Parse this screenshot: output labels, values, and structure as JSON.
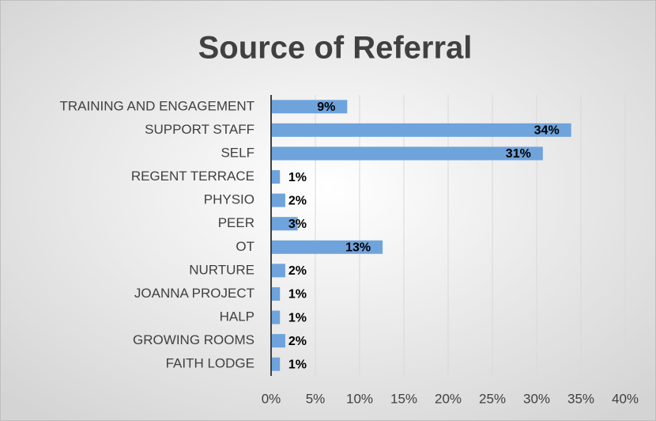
{
  "chart_data": {
    "type": "bar",
    "orientation": "horizontal",
    "title": "Source of Referral",
    "categories": [
      "TRAINING AND ENGAGEMENT",
      "SUPPORT STAFF",
      "SELF",
      "REGENT TERRACE",
      "PHYSIO",
      "PEER",
      "OT",
      "NURTURE",
      "JOANNA PROJECT",
      "HALP",
      "GROWING ROOMS",
      "FAITH LODGE"
    ],
    "values": [
      8.6,
      33.9,
      30.7,
      1.0,
      1.6,
      3.0,
      12.6,
      1.6,
      1.0,
      1.0,
      1.6,
      1.0
    ],
    "value_labels": [
      "9%",
      "34%",
      "31%",
      "1%",
      "2%",
      "3%",
      "13%",
      "2%",
      "1%",
      "1%",
      "2%",
      "1%"
    ],
    "color": "#6fa3dc",
    "xlim": [
      0,
      40
    ],
    "xticks": [
      {
        "value": 0,
        "label": "0%"
      },
      {
        "value": 5,
        "label": "5%"
      },
      {
        "value": 10,
        "label": "10%"
      },
      {
        "value": 15,
        "label": "15%"
      },
      {
        "value": 20,
        "label": "20%"
      },
      {
        "value": 25,
        "label": "25%"
      },
      {
        "value": 30,
        "label": "30%"
      },
      {
        "value": 35,
        "label": "35%"
      },
      {
        "value": 40,
        "label": "40%"
      }
    ],
    "grid": true
  }
}
